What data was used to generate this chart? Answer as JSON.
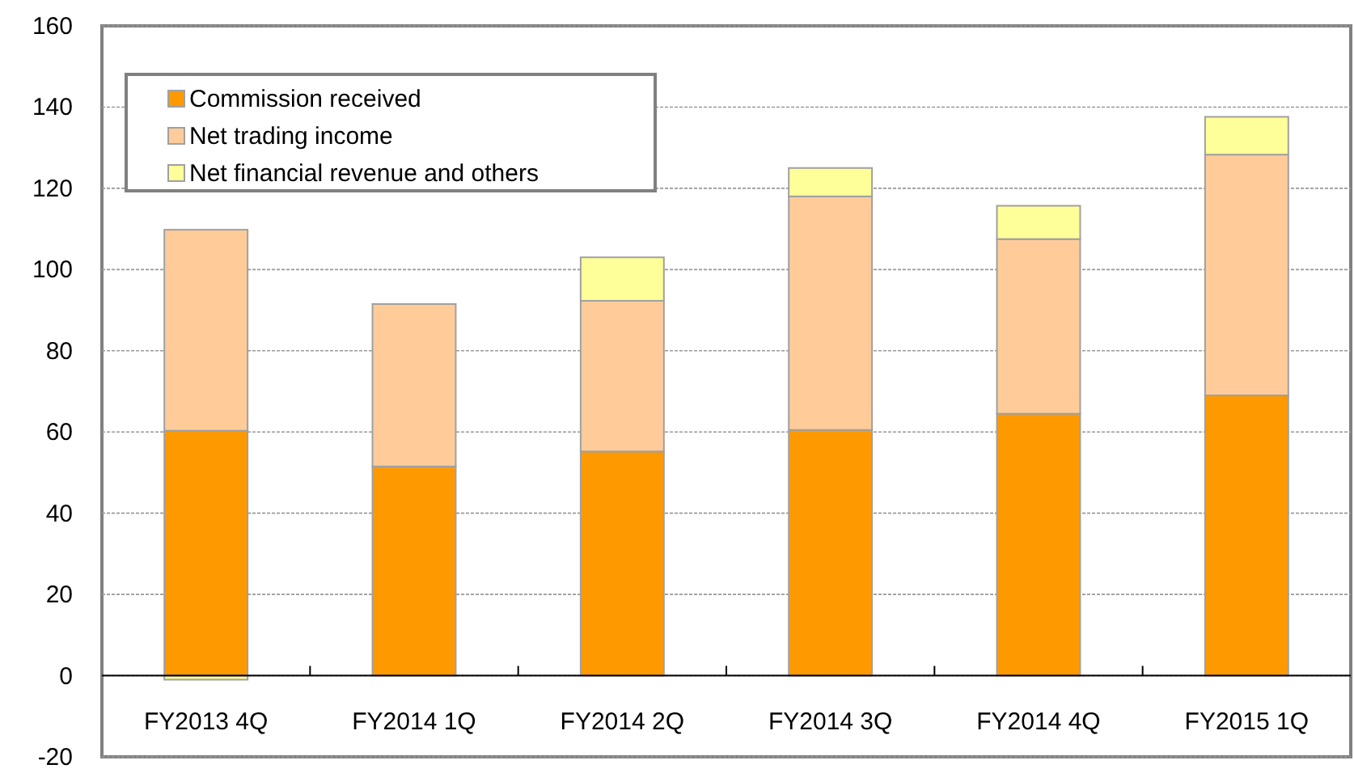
{
  "chart_data": {
    "type": "bar",
    "stacked": true,
    "categories": [
      "FY2013 4Q",
      "FY2014 1Q",
      "FY2014 2Q",
      "FY2014 3Q",
      "FY2014 4Q",
      "FY2015 1Q"
    ],
    "series": [
      {
        "name": "Commission received",
        "color": "#ff9900",
        "values": [
          60.3,
          51.5,
          55.2,
          60.5,
          64.5,
          69
        ]
      },
      {
        "name": "Net trading income",
        "color": "#ffcc99",
        "values": [
          49.5,
          40,
          37.1,
          57.5,
          43,
          59.3
        ]
      },
      {
        "name": "Net financial revenue and others",
        "color": "#ffff99",
        "values": [
          -1,
          0,
          10.7,
          7,
          8.2,
          9.3
        ]
      }
    ],
    "ylim": [
      -20,
      160
    ],
    "yticks": [
      -20,
      0,
      20,
      40,
      60,
      80,
      100,
      120,
      140,
      160
    ],
    "grid": "y",
    "legend": "top left"
  }
}
